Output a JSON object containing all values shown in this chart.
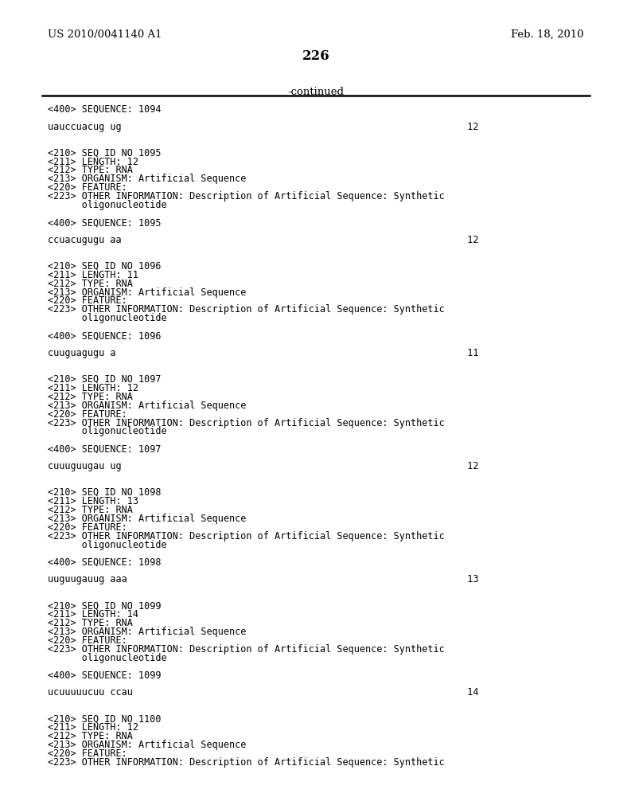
{
  "page_left": "US 2010/0041140 A1",
  "page_right": "Feb. 18, 2010",
  "page_number": "226",
  "continued_text": "-continued",
  "background_color": "#ffffff",
  "text_color": "#000000",
  "lines": [
    "<400> SEQUENCE: 1094",
    "",
    "uauccuacug ug                                                             12",
    "",
    "",
    "<210> SEQ ID NO 1095",
    "<211> LENGTH: 12",
    "<212> TYPE: RNA",
    "<213> ORGANISM: Artificial Sequence",
    "<220> FEATURE:",
    "<223> OTHER INFORMATION: Description of Artificial Sequence: Synthetic",
    "      oligonucleotide",
    "",
    "<400> SEQUENCE: 1095",
    "",
    "ccuacugugu aa                                                             12",
    "",
    "",
    "<210> SEQ ID NO 1096",
    "<211> LENGTH: 11",
    "<212> TYPE: RNA",
    "<213> ORGANISM: Artificial Sequence",
    "<220> FEATURE:",
    "<223> OTHER INFORMATION: Description of Artificial Sequence: Synthetic",
    "      oligonucleotide",
    "",
    "<400> SEQUENCE: 1096",
    "",
    "cuuguagugu a                                                              11",
    "",
    "",
    "<210> SEQ ID NO 1097",
    "<211> LENGTH: 12",
    "<212> TYPE: RNA",
    "<213> ORGANISM: Artificial Sequence",
    "<220> FEATURE:",
    "<223> OTHER INFORMATION: Description of Artificial Sequence: Synthetic",
    "      oligonucleotide",
    "",
    "<400> SEQUENCE: 1097",
    "",
    "cuuuguugau ug                                                             12",
    "",
    "",
    "<210> SEQ ID NO 1098",
    "<211> LENGTH: 13",
    "<212> TYPE: RNA",
    "<213> ORGANISM: Artificial Sequence",
    "<220> FEATURE:",
    "<223> OTHER INFORMATION: Description of Artificial Sequence: Synthetic",
    "      oligonucleotide",
    "",
    "<400> SEQUENCE: 1098",
    "",
    "uuguugauug aaa                                                            13",
    "",
    "",
    "<210> SEQ ID NO 1099",
    "<211> LENGTH: 14",
    "<212> TYPE: RNA",
    "<213> ORGANISM: Artificial Sequence",
    "<220> FEATURE:",
    "<223> OTHER INFORMATION: Description of Artificial Sequence: Synthetic",
    "      oligonucleotide",
    "",
    "<400> SEQUENCE: 1099",
    "",
    "ucuuuuucuu ccau                                                           14",
    "",
    "",
    "<210> SEQ ID NO 1100",
    "<211> LENGTH: 12",
    "<212> TYPE: RNA",
    "<213> ORGANISM: Artificial Sequence",
    "<220> FEATURE:",
    "<223> OTHER INFORMATION: Description of Artificial Sequence: Synthetic"
  ]
}
